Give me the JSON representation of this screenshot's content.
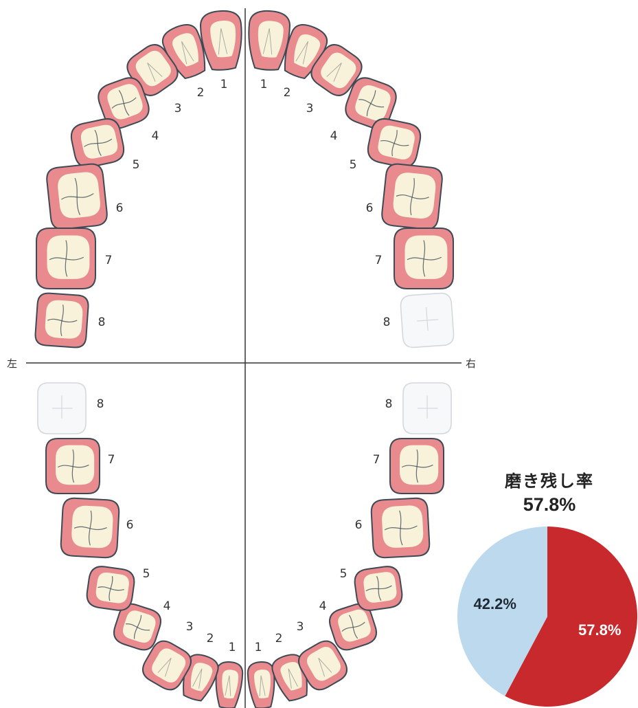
{
  "colors": {
    "plaque": "#e88a8e",
    "tooth": "#f7f2d9",
    "outline": "#3d4a55",
    "missing_fill": "#f7f8fa",
    "missing_outline": "#d4d8dd",
    "pie_remaining": "#c8292d",
    "pie_clean": "#bcd9ee"
  },
  "labels": {
    "left_side": "左",
    "right_side": "右"
  },
  "tooth_numbers": [
    "1",
    "2",
    "3",
    "4",
    "5",
    "6",
    "7",
    "8"
  ],
  "teeth": {
    "upper_left": [
      {
        "n": "1",
        "status": "present"
      },
      {
        "n": "2",
        "status": "present"
      },
      {
        "n": "3",
        "status": "present"
      },
      {
        "n": "4",
        "status": "present"
      },
      {
        "n": "5",
        "status": "present"
      },
      {
        "n": "6",
        "status": "present"
      },
      {
        "n": "7",
        "status": "present"
      },
      {
        "n": "8",
        "status": "present"
      }
    ],
    "upper_right": [
      {
        "n": "1",
        "status": "present"
      },
      {
        "n": "2",
        "status": "present"
      },
      {
        "n": "3",
        "status": "present"
      },
      {
        "n": "4",
        "status": "present"
      },
      {
        "n": "5",
        "status": "present"
      },
      {
        "n": "6",
        "status": "present"
      },
      {
        "n": "7",
        "status": "present"
      },
      {
        "n": "8",
        "status": "missing"
      }
    ],
    "lower_left": [
      {
        "n": "1",
        "status": "present"
      },
      {
        "n": "2",
        "status": "present"
      },
      {
        "n": "3",
        "status": "present"
      },
      {
        "n": "4",
        "status": "present"
      },
      {
        "n": "5",
        "status": "present"
      },
      {
        "n": "6",
        "status": "present"
      },
      {
        "n": "7",
        "status": "present"
      },
      {
        "n": "8",
        "status": "missing"
      }
    ],
    "lower_right": [
      {
        "n": "1",
        "status": "present"
      },
      {
        "n": "2",
        "status": "present"
      },
      {
        "n": "3",
        "status": "present"
      },
      {
        "n": "4",
        "status": "present"
      },
      {
        "n": "5",
        "status": "present"
      },
      {
        "n": "6",
        "status": "present"
      },
      {
        "n": "7",
        "status": "present"
      },
      {
        "n": "8",
        "status": "missing"
      }
    ]
  },
  "summary": {
    "title": "磨き残し率",
    "value": "57.8%"
  },
  "chart_data": {
    "type": "pie",
    "title": "磨き残し率",
    "slices": [
      {
        "label": "57.8%",
        "value": 57.8,
        "color": "#c8292d"
      },
      {
        "label": "42.2%",
        "value": 42.2,
        "color": "#bcd9ee"
      }
    ]
  }
}
